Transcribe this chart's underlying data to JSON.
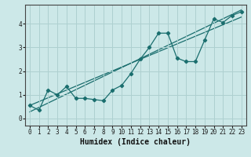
{
  "xlabel": "Humidex (Indice chaleur)",
  "bg_color": "#cce8e8",
  "grid_color": "#aed0d0",
  "line_color": "#1a6e6e",
  "xlim": [
    -0.5,
    23.5
  ],
  "ylim": [
    -0.3,
    4.8
  ],
  "xticks": [
    0,
    1,
    2,
    3,
    4,
    5,
    6,
    7,
    8,
    9,
    10,
    11,
    12,
    13,
    14,
    15,
    16,
    17,
    18,
    19,
    20,
    21,
    22,
    23
  ],
  "yticks": [
    0,
    1,
    2,
    3,
    4
  ],
  "scatter_x": [
    0,
    1,
    2,
    3,
    4,
    5,
    6,
    7,
    8,
    9,
    10,
    11,
    12,
    13,
    14,
    15,
    16,
    17,
    18,
    19,
    20,
    21,
    22,
    23
  ],
  "scatter_y": [
    0.55,
    0.35,
    1.2,
    1.0,
    1.35,
    0.85,
    0.85,
    0.8,
    0.75,
    1.2,
    1.4,
    1.9,
    2.5,
    3.0,
    3.6,
    3.6,
    2.55,
    2.4,
    2.4,
    3.3,
    4.2,
    4.05,
    4.35,
    4.5
  ],
  "reg_line": [
    [
      0,
      23
    ],
    [
      0.28,
      4.58
    ]
  ],
  "reg_line2": [
    [
      0,
      23
    ],
    [
      0.55,
      4.28
    ]
  ]
}
